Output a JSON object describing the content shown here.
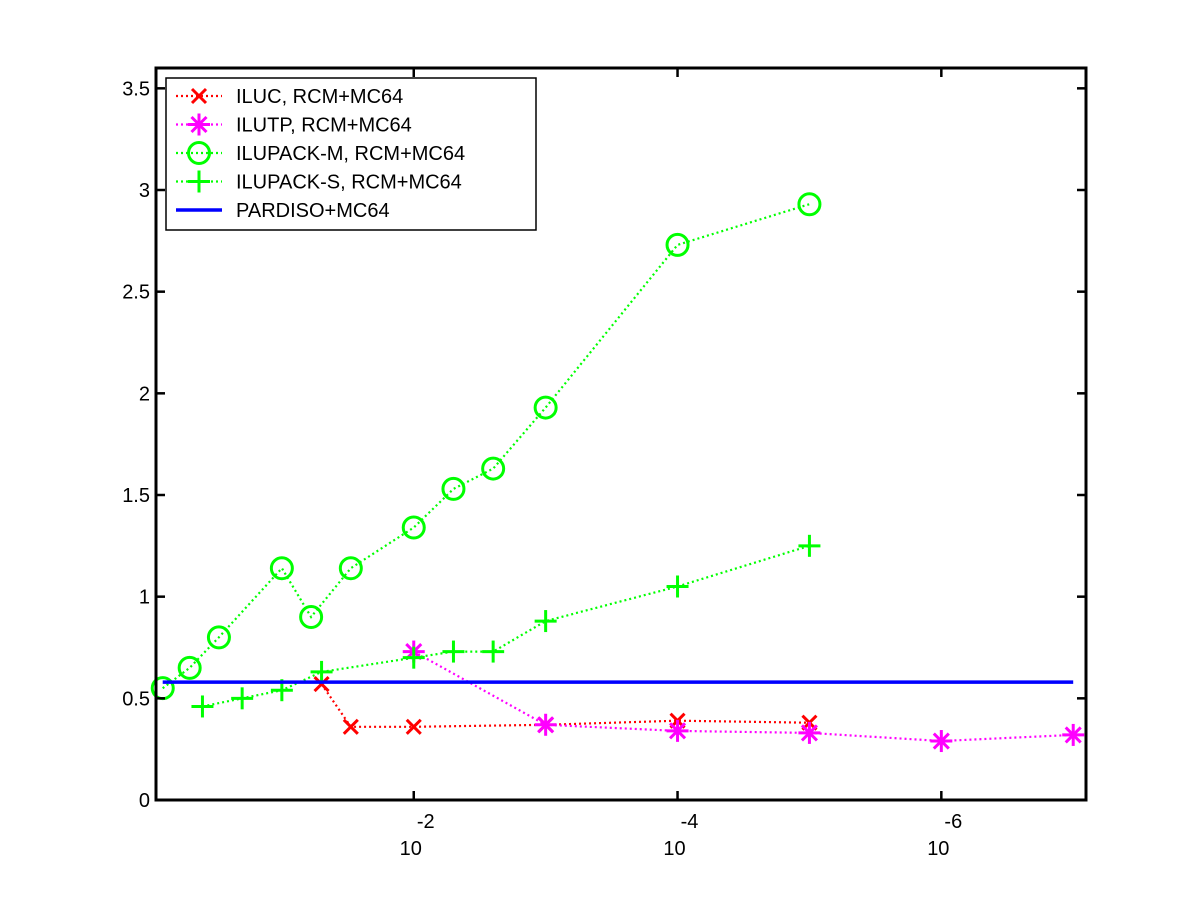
{
  "chart_data": {
    "type": "line",
    "x_scale": "log",
    "x_reversed": true,
    "xlim": [
      0.9,
      8e-08
    ],
    "ylim": [
      0,
      3.6
    ],
    "x_ticks": [
      {
        "value": 0.01,
        "base": "10",
        "exp": "-2"
      },
      {
        "value": 0.0001,
        "base": "10",
        "exp": "-4"
      },
      {
        "value": 1e-06,
        "base": "10",
        "exp": "-6"
      }
    ],
    "y_ticks": [
      {
        "value": 0,
        "label": "0"
      },
      {
        "value": 0.5,
        "label": "0.5"
      },
      {
        "value": 1,
        "label": "1"
      },
      {
        "value": 1.5,
        "label": "1.5"
      },
      {
        "value": 2,
        "label": "2"
      },
      {
        "value": 2.5,
        "label": "2.5"
      },
      {
        "value": 3,
        "label": "3"
      },
      {
        "value": 3.5,
        "label": "3.5"
      }
    ],
    "grid": false,
    "legend_position": "top-left",
    "series": [
      {
        "name": "ILUC, RCM+MC64",
        "color": "#ff0000",
        "marker": "x",
        "line": "dotted",
        "points": [
          [
            0.05,
            0.57
          ],
          [
            0.03,
            0.36
          ],
          [
            0.01,
            0.36
          ],
          [
            0.001,
            0.37
          ],
          [
            0.0001,
            0.39
          ],
          [
            1e-05,
            0.38
          ]
        ]
      },
      {
        "name": "ILUTP, RCM+MC64",
        "color": "#ff00ff",
        "marker": "asterisk",
        "line": "dotted",
        "points": [
          [
            0.01,
            0.73
          ],
          [
            0.001,
            0.37
          ],
          [
            0.0001,
            0.34
          ],
          [
            1e-05,
            0.33
          ],
          [
            1e-06,
            0.29
          ],
          [
            1e-07,
            0.32
          ]
        ]
      },
      {
        "name": "ILUPACK-M, RCM+MC64",
        "color": "#00ff00",
        "marker": "circle",
        "line": "dotted",
        "points": [
          [
            0.8,
            0.55
          ],
          [
            0.5,
            0.65
          ],
          [
            0.3,
            0.8
          ],
          [
            0.1,
            1.14
          ],
          [
            0.06,
            0.9
          ],
          [
            0.03,
            1.14
          ],
          [
            0.01,
            1.34
          ],
          [
            0.005,
            1.53
          ],
          [
            0.0025,
            1.63
          ],
          [
            0.001,
            1.93
          ],
          [
            0.0001,
            2.73
          ],
          [
            1e-05,
            2.93
          ]
        ]
      },
      {
        "name": "ILUPACK-S, RCM+MC64",
        "color": "#00ff00",
        "marker": "plus",
        "line": "dotted",
        "points": [
          [
            0.4,
            0.46
          ],
          [
            0.2,
            0.5
          ],
          [
            0.1,
            0.54
          ],
          [
            0.05,
            0.63
          ],
          [
            0.01,
            0.7
          ],
          [
            0.005,
            0.73
          ],
          [
            0.0025,
            0.73
          ],
          [
            0.001,
            0.88
          ],
          [
            0.0001,
            1.05
          ],
          [
            1e-05,
            1.25
          ]
        ]
      },
      {
        "name": "PARDISO+MC64",
        "color": "#0000ff",
        "marker": "none",
        "line": "solid",
        "points": [
          [
            0.8,
            0.58
          ],
          [
            1e-07,
            0.58
          ]
        ]
      }
    ]
  }
}
